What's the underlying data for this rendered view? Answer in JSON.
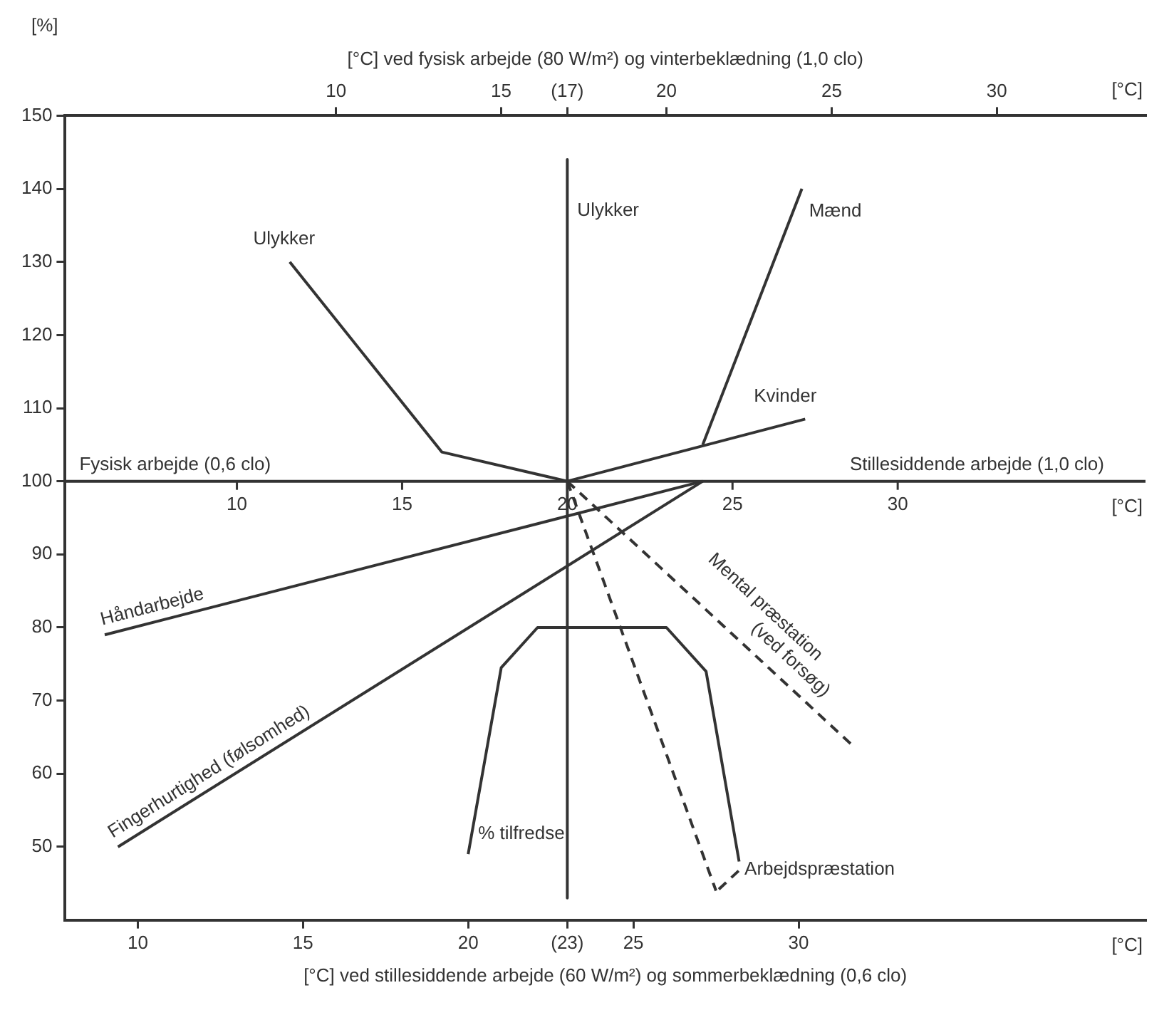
{
  "chart_data": {
    "type": "line",
    "ylabel": "[%]",
    "xlabel": "[°C] ved stillesiddende arbejde (60 W/m²) og sommerbeklædning (0,6 clo)",
    "x2label": "[°C] ved fysisk arbejde (80 W/m²) og vinterbeklædning (1,0 clo)",
    "xlim": [
      7.8,
      40.5
    ],
    "xticks": [
      10,
      15,
      20,
      {
        "value": 23,
        "label": "(23)"
      },
      25,
      30
    ],
    "x2lim": [
      1.8,
      34.5
    ],
    "x2ticks": [
      10,
      15,
      {
        "value": 17,
        "label": "(17)"
      },
      20,
      25,
      30
    ],
    "ylim": [
      40,
      150
    ],
    "yticks": [
      50,
      60,
      70,
      80,
      90,
      100,
      110,
      120,
      130,
      140,
      150
    ],
    "marker": "none",
    "ref_lines": [
      {
        "axis": "y",
        "value": 100,
        "label": "Fysisk arbejde (0,6 clo)"
      }
    ],
    "annotations": [
      "[°C]",
      "[°C]",
      "[°C]",
      {
        "text": "Stillesiddende arbejde (1,0 clo)",
        "x": 35.4,
        "y": 100
      },
      {
        "text": "10",
        "x": 13,
        "y": 100
      },
      {
        "text": "15",
        "x": 18,
        "y": 100
      },
      {
        "text": "20",
        "x": 23,
        "y": 100
      },
      {
        "text": "25",
        "x": 28,
        "y": 100
      },
      {
        "text": "30",
        "x": 33,
        "y": 100
      }
    ],
    "series": [
      {
        "name": "Ulykker",
        "color": "#333333",
        "x": [
          14.6,
          19.2,
          23
        ],
        "values": [
          130,
          104,
          100
        ]
      },
      {
        "name": "Ulykker",
        "color": "#333333",
        "x": [
          23,
          23
        ],
        "values": [
          144,
          43
        ]
      },
      {
        "name": "Mænd",
        "color": "#333333",
        "x": [
          27.1,
          30.1
        ],
        "values": [
          105,
          140
        ]
      },
      {
        "name": "Kvinder",
        "color": "#333333",
        "x": [
          23,
          30.2
        ],
        "values": [
          100,
          108.5
        ]
      },
      {
        "name": "Håndarbejde",
        "color": "#333333",
        "x": [
          9,
          27.1
        ],
        "values": [
          79,
          100
        ]
      },
      {
        "name": "Fingerhurtighed (følsomhed)",
        "color": "#333333",
        "x": [
          9.4,
          27.1
        ],
        "values": [
          50,
          100
        ]
      },
      {
        "name": "Mental præstation (ved forsøg)",
        "color": "#333333",
        "line_style": "dashed",
        "x": [
          23,
          31.6
        ],
        "values": [
          100,
          64
        ]
      },
      {
        "name": "Arbejdspræstation",
        "color": "#333333",
        "line_style": "dashed",
        "x": [
          23,
          27.5
        ],
        "values": [
          100,
          44
        ]
      },
      {
        "name": "% tilfredse",
        "color": "#333333",
        "x": [
          20,
          21,
          22.1,
          26,
          27.2,
          28.2
        ],
        "values": [
          49,
          74.5,
          80,
          80,
          74,
          48
        ]
      }
    ]
  }
}
